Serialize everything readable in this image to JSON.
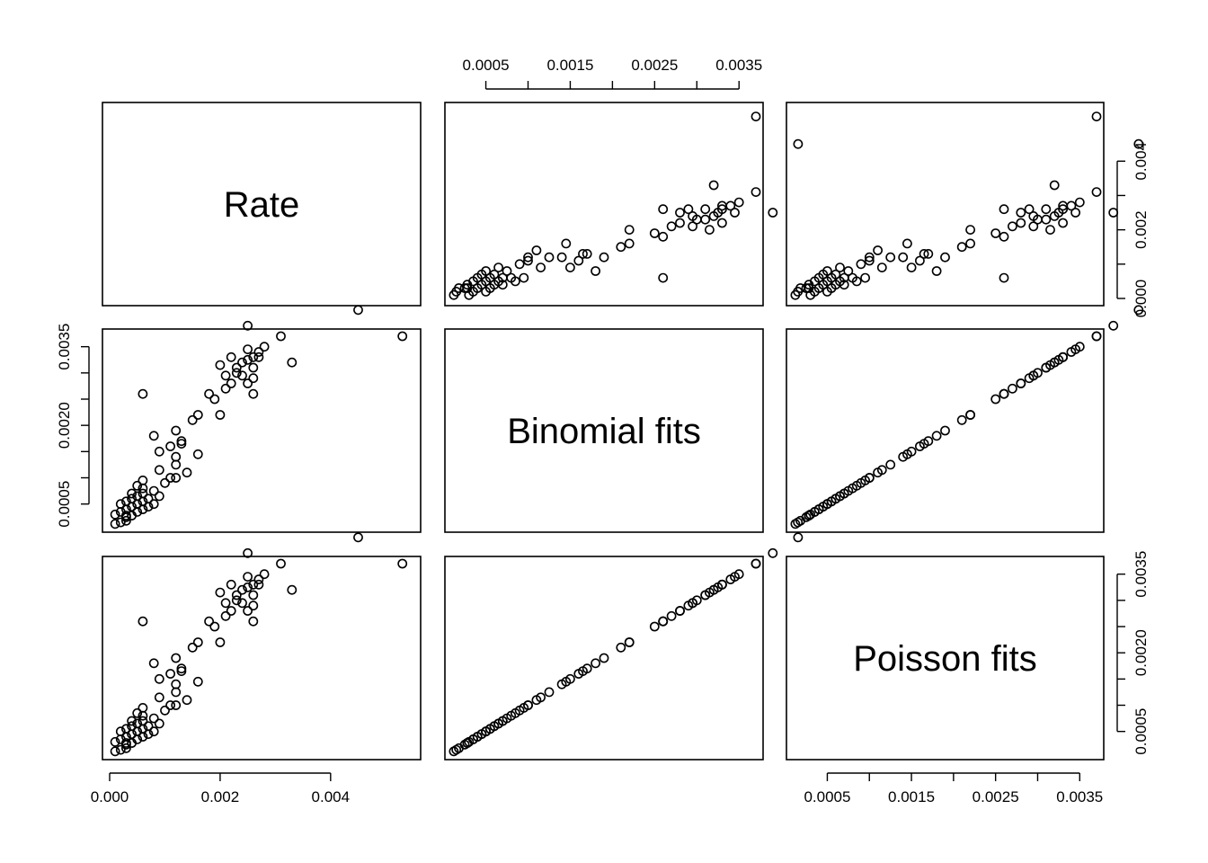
{
  "chart_data": {
    "type": "scatter",
    "kind": "scatterplot-matrix",
    "variables": [
      "Rate",
      "Binomial fits",
      "Poisson fits"
    ],
    "ranges": {
      "Rate": [
        0.0,
        0.0055
      ],
      "Binomial fits": [
        0.0001,
        0.0037
      ]
    },
    "ticks": {
      "Rate": [
        {
          "value": 0.0,
          "label": "0.000"
        },
        {
          "value": 0.002,
          "label": "0.002"
        },
        {
          "value": 0.004,
          "label": "0.004"
        }
      ],
      "Binomial fits": [
        {
          "value": 0.0005,
          "label": "0.0005"
        },
        {
          "value": 0.001,
          "label": ""
        },
        {
          "value": 0.0015,
          "label": "0.0015"
        },
        {
          "value": 0.002,
          "label": ""
        },
        {
          "value": 0.0025,
          "label": "0.0025"
        },
        {
          "value": 0.003,
          "label": ""
        },
        {
          "value": 0.0035,
          "label": "0.0035"
        }
      ],
      "Binomial fits vertical": [
        {
          "value": 0.0005,
          "label": "0.0005"
        },
        {
          "value": 0.001,
          "label": ""
        },
        {
          "value": 0.0015,
          "label": ""
        },
        {
          "value": 0.002,
          "label": "0.0020"
        },
        {
          "value": 0.0025,
          "label": ""
        },
        {
          "value": 0.003,
          "label": ""
        },
        {
          "value": 0.0035,
          "label": "0.0035"
        }
      ],
      "Rate vertical": [
        {
          "value": 0.0,
          "label": "0.000"
        },
        {
          "value": 0.001,
          "label": ""
        },
        {
          "value": 0.002,
          "label": "0.002"
        },
        {
          "value": 0.003,
          "label": ""
        },
        {
          "value": 0.004,
          "label": "0.004"
        }
      ]
    },
    "points": [
      {
        "rate": 0.0001,
        "fit": 0.00012
      },
      {
        "rate": 0.0002,
        "fit": 0.00015
      },
      {
        "rate": 0.0003,
        "fit": 0.00018
      },
      {
        "rate": 0.0003,
        "fit": 0.00025
      },
      {
        "rate": 0.0001,
        "fit": 0.0003
      },
      {
        "rate": 0.0004,
        "fit": 0.00028
      },
      {
        "rate": 0.0002,
        "fit": 0.00035
      },
      {
        "rate": 0.0005,
        "fit": 0.00035
      },
      {
        "rate": 0.0003,
        "fit": 0.0004
      },
      {
        "rate": 0.0006,
        "fit": 0.0004
      },
      {
        "rate": 0.0004,
        "fit": 0.00045
      },
      {
        "rate": 0.0002,
        "fit": 0.0005
      },
      {
        "rate": 0.0007,
        "fit": 0.00045
      },
      {
        "rate": 0.0005,
        "fit": 0.0005
      },
      {
        "rate": 0.0008,
        "fit": 0.0005
      },
      {
        "rate": 0.0003,
        "fit": 0.00055
      },
      {
        "rate": 0.0006,
        "fit": 0.00055
      },
      {
        "rate": 0.0004,
        "fit": 0.0006
      },
      {
        "rate": 0.0007,
        "fit": 0.0006
      },
      {
        "rate": 0.0005,
        "fit": 0.00065
      },
      {
        "rate": 0.0009,
        "fit": 0.00065
      },
      {
        "rate": 0.0006,
        "fit": 0.0007
      },
      {
        "rate": 0.0004,
        "fit": 0.0007
      },
      {
        "rate": 0.0008,
        "fit": 0.00075
      },
      {
        "rate": 0.0006,
        "fit": 0.0008
      },
      {
        "rate": 0.0005,
        "fit": 0.00085
      },
      {
        "rate": 0.001,
        "fit": 0.0009
      },
      {
        "rate": 0.0012,
        "fit": 0.001
      },
      {
        "rate": 0.0006,
        "fit": 0.00095
      },
      {
        "rate": 0.0003,
        "fit": 0.00028
      },
      {
        "rate": 0.0011,
        "fit": 0.001
      },
      {
        "rate": 0.0009,
        "fit": 0.00115
      },
      {
        "rate": 0.0014,
        "fit": 0.0011
      },
      {
        "rate": 0.0012,
        "fit": 0.00125
      },
      {
        "rate": 0.0012,
        "fit": 0.0014
      },
      {
        "rate": 0.0016,
        "fit": 0.00145
      },
      {
        "rate": 0.0009,
        "fit": 0.0015
      },
      {
        "rate": 0.0011,
        "fit": 0.0016
      },
      {
        "rate": 0.0013,
        "fit": 0.00165
      },
      {
        "rate": 0.0008,
        "fit": 0.0018
      },
      {
        "rate": 0.0012,
        "fit": 0.0019
      },
      {
        "rate": 0.0013,
        "fit": 0.0017
      },
      {
        "rate": 0.0015,
        "fit": 0.0021
      },
      {
        "rate": 0.0016,
        "fit": 0.0022
      },
      {
        "rate": 0.0018,
        "fit": 0.0026
      },
      {
        "rate": 0.0019,
        "fit": 0.0025
      },
      {
        "rate": 0.002,
        "fit": 0.0022
      },
      {
        "rate": 0.0021,
        "fit": 0.0027
      },
      {
        "rate": 0.0022,
        "fit": 0.0028
      },
      {
        "rate": 0.0023,
        "fit": 0.003
      },
      {
        "rate": 0.0025,
        "fit": 0.0028
      },
      {
        "rate": 0.0024,
        "fit": 0.00295
      },
      {
        "rate": 0.0026,
        "fit": 0.0029
      },
      {
        "rate": 0.002,
        "fit": 0.00315
      },
      {
        "rate": 0.0025,
        "fit": 0.00325
      },
      {
        "rate": 0.0026,
        "fit": 0.0033
      },
      {
        "rate": 0.0025,
        "fit": 0.00345
      },
      {
        "rate": 0.0027,
        "fit": 0.0034
      },
      {
        "rate": 0.0026,
        "fit": 0.0031
      },
      {
        "rate": 0.0028,
        "fit": 0.0035
      },
      {
        "rate": 0.0024,
        "fit": 0.0032
      },
      {
        "rate": 0.0022,
        "fit": 0.0033
      },
      {
        "rate": 0.0031,
        "fit": 0.0037
      },
      {
        "rate": 0.0033,
        "fit": 0.0032
      },
      {
        "rate": 0.0026,
        "fit": 0.0026
      },
      {
        "rate": 0.0006,
        "fit": 0.0026
      },
      {
        "rate": 0.0027,
        "fit": 0.0033
      },
      {
        "rate": 0.0021,
        "fit": 0.00295
      },
      {
        "rate": 0.0023,
        "fit": 0.0031
      },
      {
        "rate": 0.0025,
        "fit": 0.0039
      },
      {
        "rate": 0.0045,
        "fit": 0.0042
      },
      {
        "rate": 0.0053,
        "fit": 0.0037
      }
    ]
  }
}
